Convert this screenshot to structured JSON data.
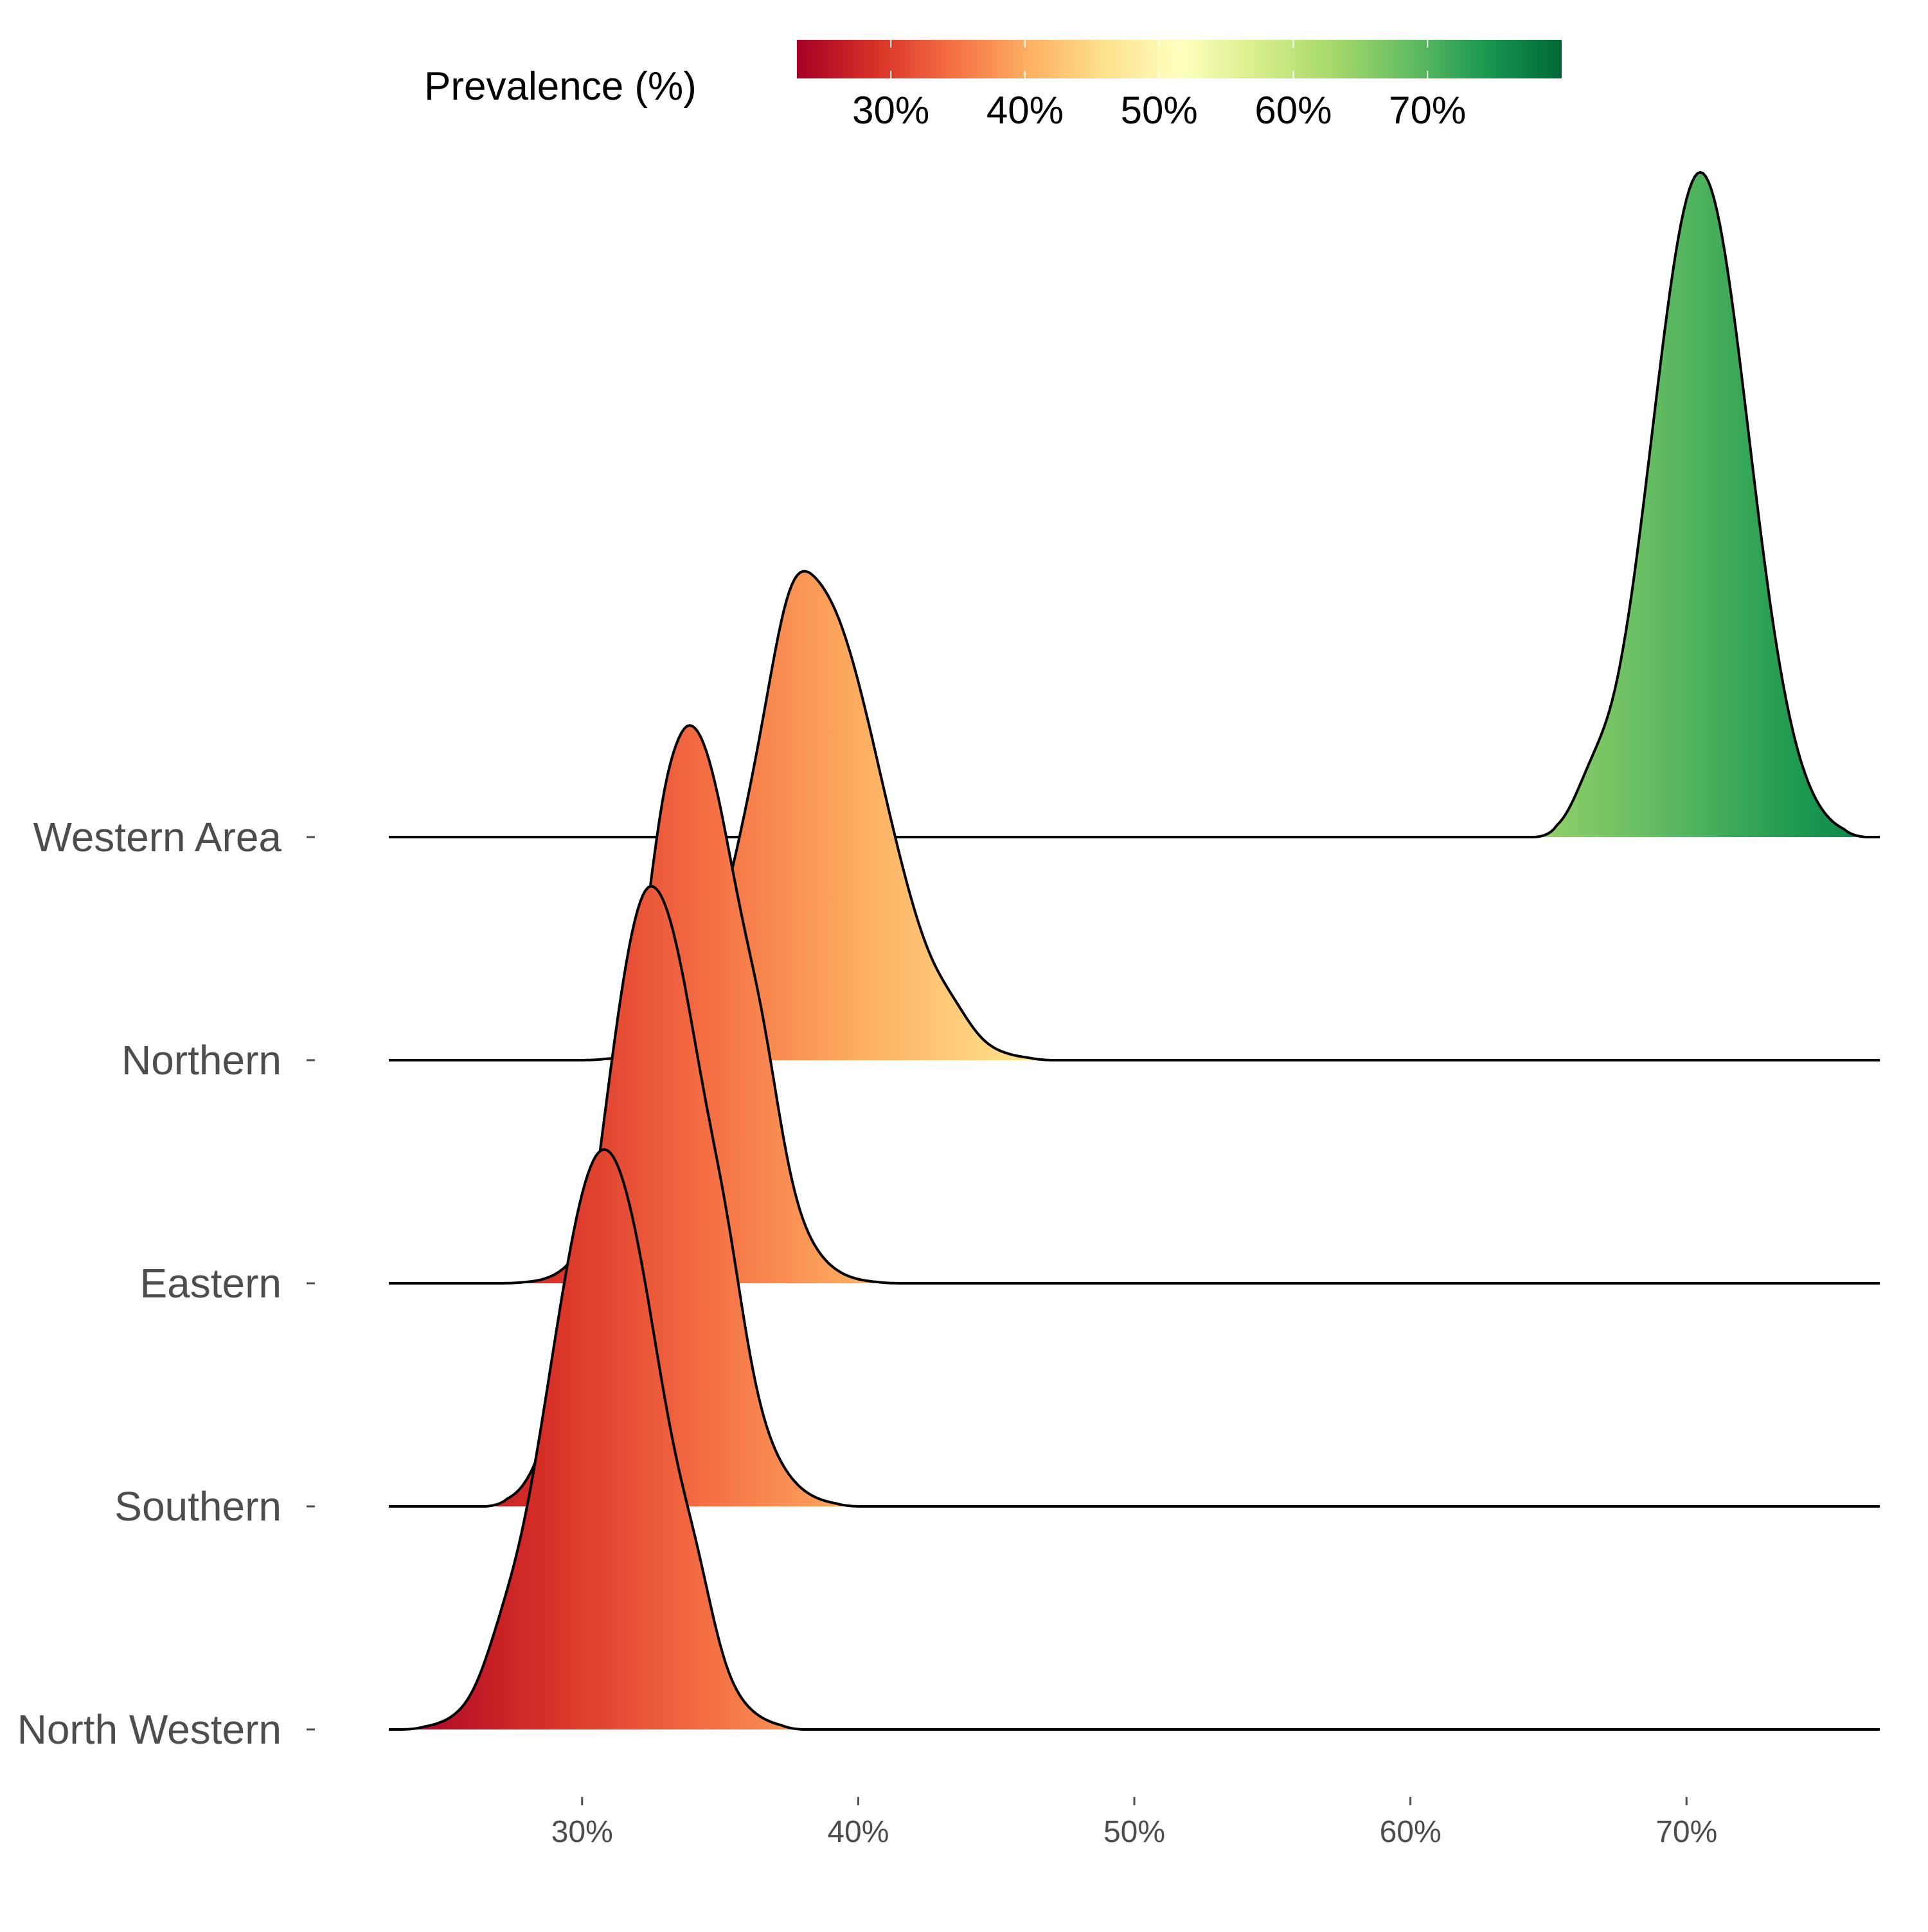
{
  "chart_data": {
    "type": "ridgeline",
    "title": "",
    "xlabel": "",
    "ylabel": "",
    "xlim": [
      23,
      77
    ],
    "x_ticks": [
      30,
      40,
      50,
      60,
      70
    ],
    "x_tick_labels": [
      "30%",
      "40%",
      "50%",
      "60%",
      "70%"
    ],
    "grid": false,
    "legend": {
      "title": "Prevalence (%)",
      "placement": "top",
      "type": "colorbar",
      "range": [
        23,
        80
      ],
      "ticks": [
        30,
        40,
        50,
        60,
        70
      ],
      "tick_labels": [
        "30%",
        "40%",
        "50%",
        "60%",
        "70%"
      ],
      "palette": [
        "#a50026",
        "#d73027",
        "#f46d43",
        "#fdae61",
        "#fee08b",
        "#ffffbf",
        "#d9ef8b",
        "#a6d96a",
        "#66bd63",
        "#1a9850",
        "#006837"
      ]
    },
    "y_scale_note": "peak heights in units of ridge spacing",
    "series": [
      {
        "name": "Western Area",
        "mode": 70.5,
        "sd_left": 1.75,
        "sd_right": 1.75,
        "peak_height": 2.98,
        "x_min": 64.5,
        "x_max": 76.5,
        "shoulders": [
          {
            "x": 66.5,
            "h": 0.12
          }
        ],
        "extra_peaks": []
      },
      {
        "name": "Northern",
        "mode": 38.4,
        "sd_left": 2.2,
        "sd_right": 2.4,
        "peak_height": 2.12,
        "x_min": 30.0,
        "x_max": 47.0,
        "shoulders": [
          {
            "x": 37.5,
            "h": 0.15
          },
          {
            "x": 43.5,
            "h": 0.05
          }
        ],
        "extra_peaks": []
      },
      {
        "name": "Eastern",
        "mode": 33.9,
        "sd_left": 1.7,
        "sd_right": 1.95,
        "peak_height": 2.5,
        "x_min": 27.0,
        "x_max": 41.5,
        "shoulders": [
          {
            "x": 36.6,
            "h": 0.2
          }
        ],
        "extra_peaks": [
          {
            "x": 32.9,
            "h": 0.05
          }
        ]
      },
      {
        "name": "Southern",
        "mode": 32.5,
        "sd_left": 1.75,
        "sd_right": 2.05,
        "peak_height": 2.78,
        "x_min": 26.5,
        "x_max": 40.0,
        "shoulders": [
          {
            "x": 29.0,
            "h": 0.08
          },
          {
            "x": 35.3,
            "h": 0.18
          }
        ],
        "extra_peaks": []
      },
      {
        "name": "North Western",
        "mode": 30.8,
        "sd_left": 2.0,
        "sd_right": 2.05,
        "peak_height": 2.6,
        "x_min": 23.5,
        "x_max": 38.0,
        "shoulders": [
          {
            "x": 27.0,
            "h": 0.08
          },
          {
            "x": 34.2,
            "h": 0.15
          }
        ],
        "extra_peaks": []
      }
    ]
  }
}
